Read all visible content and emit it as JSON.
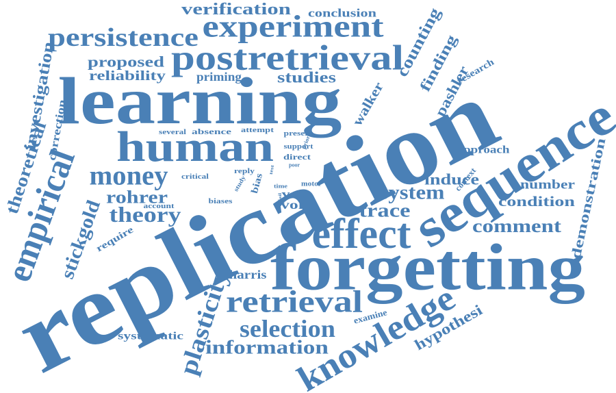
{
  "color": "#4a80b6",
  "words": [
    "replication",
    "learning",
    "forgetting",
    "sequence",
    "human",
    "postretrieval",
    "experiment",
    "persistence",
    "effect",
    "retrieval",
    "knowledge",
    "empirical",
    "money",
    "theory",
    "rohrer",
    "selection",
    "information",
    "plasticity",
    "stickgold",
    "theoretical",
    "investigation",
    "correction",
    "verification",
    "conclusion",
    "proposed",
    "reliability",
    "priming",
    "studies",
    "counting",
    "finding",
    "pashler",
    "research",
    "walker",
    "system",
    "trace",
    "induce",
    "approach",
    "context",
    "number",
    "condition",
    "comment",
    "demonstration",
    "hypothesi",
    "examine",
    "harris",
    "systematic",
    "require",
    "account",
    "several",
    "absence",
    "attempt",
    "present",
    "support",
    "direct",
    "prior",
    "reply",
    "critical",
    "poor",
    "test",
    "bias",
    "study",
    "biases",
    "time",
    "vote",
    "vohs",
    "motor",
    "fail"
  ]
}
